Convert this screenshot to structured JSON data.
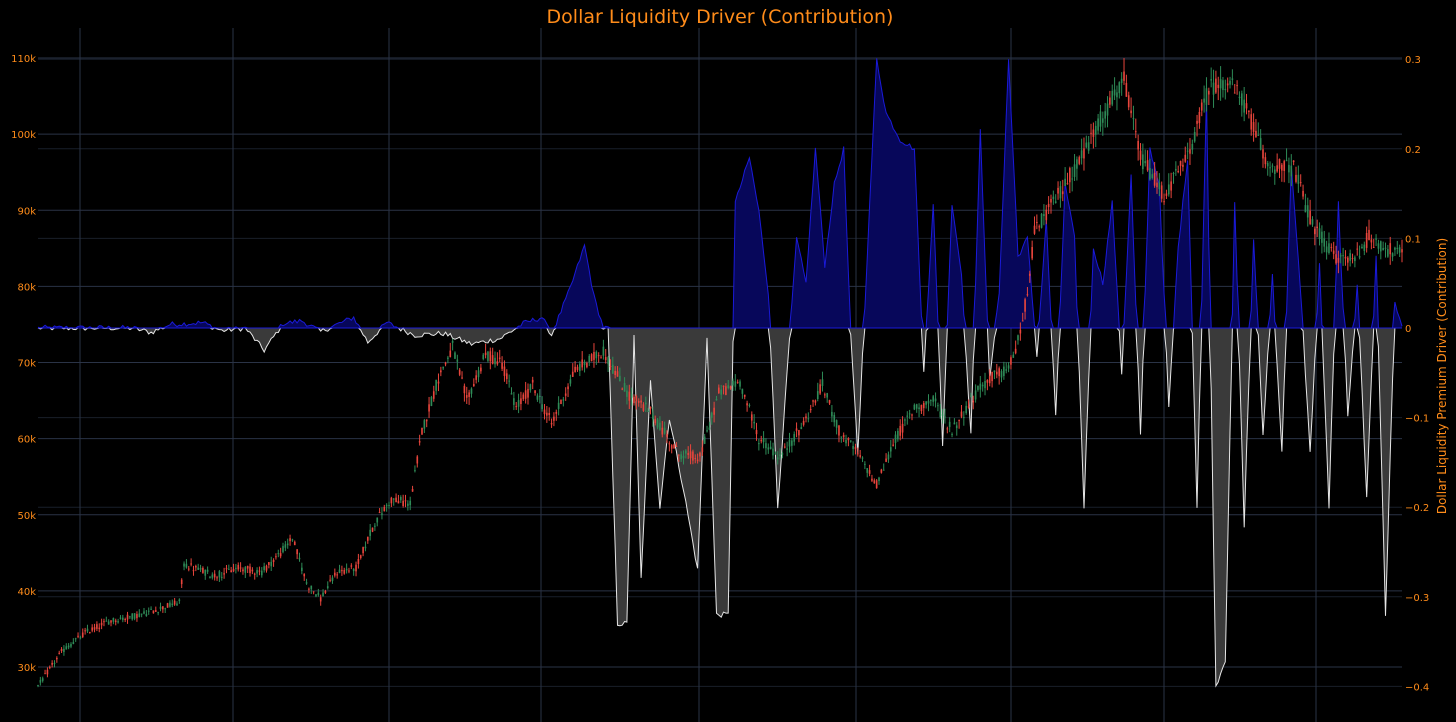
{
  "colors": {
    "background": "#000000",
    "grid": "#2a3346",
    "label_orange": "#ff8c1a",
    "axis_left_title": "#ff3b2f",
    "up_candle": "#2e8b57",
    "down_candle": "#e8453c",
    "positive_fill": "#07075a",
    "positive_line": "#1a1ad8",
    "negative_fill": "#3a3a3a",
    "negative_line": "#e6e6e6"
  },
  "chart_data": {
    "type": "candlestick+area",
    "title": "Dollar Liquidity Driver (Contribution)",
    "y_left": {
      "title": "",
      "range": [
        26000,
        113000
      ],
      "ticks": [
        30000,
        40000,
        50000,
        60000,
        70000,
        80000,
        90000,
        100000,
        110000
      ],
      "tick_labels": [
        "30k",
        "40k",
        "50k",
        "60k",
        "70k",
        "80k",
        "90k",
        "100k",
        "110k"
      ]
    },
    "y_right": {
      "title": "Dollar Liquidity Premium Driver (Contribution)",
      "range": [
        -0.42,
        0.32
      ],
      "ticks": [
        -0.4,
        -0.3,
        -0.2,
        -0.1,
        0,
        0.1,
        0.2,
        0.3
      ],
      "tick_labels": [
        "−0.4",
        "−0.3",
        "−0.2",
        "−0.1",
        "0",
        "0.1",
        "0.2",
        "0.3"
      ]
    },
    "x_count": 280,
    "grid": true,
    "price_path": [
      [
        0,
        27500
      ],
      [
        10,
        32000
      ],
      [
        20,
        34500
      ],
      [
        30,
        36000
      ],
      [
        45,
        37000
      ],
      [
        60,
        38500
      ],
      [
        62,
        43500
      ],
      [
        75,
        42000
      ],
      [
        85,
        43000
      ],
      [
        95,
        42500
      ],
      [
        103,
        45000
      ],
      [
        108,
        47000
      ],
      [
        114,
        41000
      ],
      [
        120,
        39000
      ],
      [
        127,
        42500
      ],
      [
        135,
        43000
      ],
      [
        143,
        49000
      ],
      [
        150,
        52000
      ],
      [
        158,
        51500
      ],
      [
        163,
        61000
      ],
      [
        170,
        68000
      ],
      [
        176,
        72000
      ],
      [
        182,
        65000
      ],
      [
        190,
        71000
      ],
      [
        197,
        70000
      ],
      [
        203,
        64000
      ],
      [
        210,
        67000
      ],
      [
        218,
        62000
      ],
      [
        228,
        69000
      ],
      [
        240,
        71500
      ],
      [
        250,
        66000
      ],
      [
        260,
        63500
      ],
      [
        272,
        58000
      ],
      [
        281,
        57500
      ],
      [
        289,
        66000
      ],
      [
        298,
        67500
      ],
      [
        306,
        60000
      ],
      [
        315,
        57500
      ],
      [
        325,
        62000
      ],
      [
        333,
        67000
      ],
      [
        340,
        61000
      ],
      [
        348,
        58000
      ],
      [
        356,
        54000
      ],
      [
        364,
        60000
      ],
      [
        372,
        64000
      ],
      [
        380,
        65000
      ],
      [
        388,
        61000
      ],
      [
        396,
        65000
      ],
      [
        404,
        68000
      ],
      [
        412,
        69000
      ],
      [
        418,
        75000
      ],
      [
        423,
        87000
      ],
      [
        433,
        92000
      ],
      [
        443,
        97000
      ],
      [
        453,
        103000
      ],
      [
        461,
        107000
      ],
      [
        468,
        97000
      ],
      [
        478,
        92000
      ],
      [
        488,
        97000
      ],
      [
        497,
        106000
      ],
      [
        505,
        107000
      ],
      [
        512,
        104000
      ],
      [
        522,
        96000
      ],
      [
        533,
        95500
      ],
      [
        541,
        88000
      ],
      [
        550,
        84000
      ],
      [
        558,
        83500
      ],
      [
        565,
        86500
      ],
      [
        572,
        85000
      ],
      [
        579,
        84000
      ]
    ],
    "premium_path": [
      [
        0,
        0
      ],
      [
        40,
        0
      ],
      [
        48,
        -0.005
      ],
      [
        56,
        0.004
      ],
      [
        70,
        0.006
      ],
      [
        78,
        -0.003
      ],
      [
        88,
        0
      ],
      [
        96,
        -0.025
      ],
      [
        104,
        0.005
      ],
      [
        112,
        0.008
      ],
      [
        120,
        -0.004
      ],
      [
        134,
        0.012
      ],
      [
        140,
        -0.016
      ],
      [
        148,
        0.006
      ],
      [
        160,
        -0.008
      ],
      [
        172,
        -0.006
      ],
      [
        184,
        -0.018
      ],
      [
        196,
        -0.012
      ],
      [
        206,
        0.005
      ],
      [
        214,
        0.012
      ],
      [
        218,
        -0.008
      ],
      [
        226,
        0.045
      ],
      [
        232,
        0.092
      ],
      [
        236,
        0.035
      ],
      [
        240,
        0
      ],
      [
        242,
        0
      ],
      [
        246,
        -0.33
      ],
      [
        250,
        -0.33
      ],
      [
        253,
        -0.01
      ],
      [
        256,
        -0.28
      ],
      [
        260,
        -0.06
      ],
      [
        264,
        -0.2
      ],
      [
        268,
        -0.1
      ],
      [
        274,
        -0.18
      ],
      [
        280,
        -0.27
      ],
      [
        284,
        -0.01
      ],
      [
        288,
        -0.32
      ],
      [
        293,
        -0.32
      ],
      [
        296,
        0.14
      ],
      [
        302,
        0.19
      ],
      [
        306,
        0.13
      ],
      [
        310,
        0.04
      ],
      [
        314,
        -0.2
      ],
      [
        318,
        -0.05
      ],
      [
        322,
        0.1
      ],
      [
        326,
        0.05
      ],
      [
        330,
        0.2
      ],
      [
        334,
        0.07
      ],
      [
        338,
        0.16
      ],
      [
        342,
        0.2
      ],
      [
        345,
        -0.01
      ],
      [
        348,
        -0.14
      ],
      [
        352,
        0.08
      ],
      [
        356,
        0.3
      ],
      [
        360,
        0.24
      ],
      [
        366,
        0.21
      ],
      [
        372,
        0.2
      ],
      [
        376,
        -0.05
      ],
      [
        380,
        0.14
      ],
      [
        384,
        -0.13
      ],
      [
        388,
        0.14
      ],
      [
        392,
        0.06
      ],
      [
        396,
        -0.12
      ],
      [
        400,
        0.22
      ],
      [
        404,
        -0.06
      ],
      [
        408,
        0.04
      ],
      [
        412,
        0.3
      ],
      [
        416,
        0.08
      ],
      [
        420,
        0.1
      ],
      [
        424,
        -0.03
      ],
      [
        428,
        0.12
      ],
      [
        432,
        -0.1
      ],
      [
        436,
        0.16
      ],
      [
        440,
        0.1
      ],
      [
        444,
        -0.2
      ],
      [
        448,
        0.09
      ],
      [
        452,
        0.05
      ],
      [
        456,
        0.14
      ],
      [
        460,
        -0.05
      ],
      [
        464,
        0.17
      ],
      [
        468,
        -0.12
      ],
      [
        472,
        0.2
      ],
      [
        476,
        0.16
      ],
      [
        480,
        -0.09
      ],
      [
        484,
        0.09
      ],
      [
        488,
        0.19
      ],
      [
        492,
        -0.2
      ],
      [
        496,
        0.26
      ],
      [
        500,
        -0.4
      ],
      [
        504,
        -0.37
      ],
      [
        508,
        0.14
      ],
      [
        512,
        -0.22
      ],
      [
        516,
        0.1
      ],
      [
        520,
        -0.12
      ],
      [
        524,
        0.06
      ],
      [
        528,
        -0.14
      ],
      [
        532,
        0.18
      ],
      [
        536,
        0.04
      ],
      [
        540,
        -0.14
      ],
      [
        544,
        0.07
      ],
      [
        548,
        -0.2
      ],
      [
        552,
        0.14
      ],
      [
        556,
        -0.1
      ],
      [
        560,
        0.05
      ],
      [
        564,
        -0.19
      ],
      [
        568,
        0.08
      ],
      [
        572,
        -0.32
      ],
      [
        576,
        0.03
      ],
      [
        579,
        0
      ]
    ]
  }
}
